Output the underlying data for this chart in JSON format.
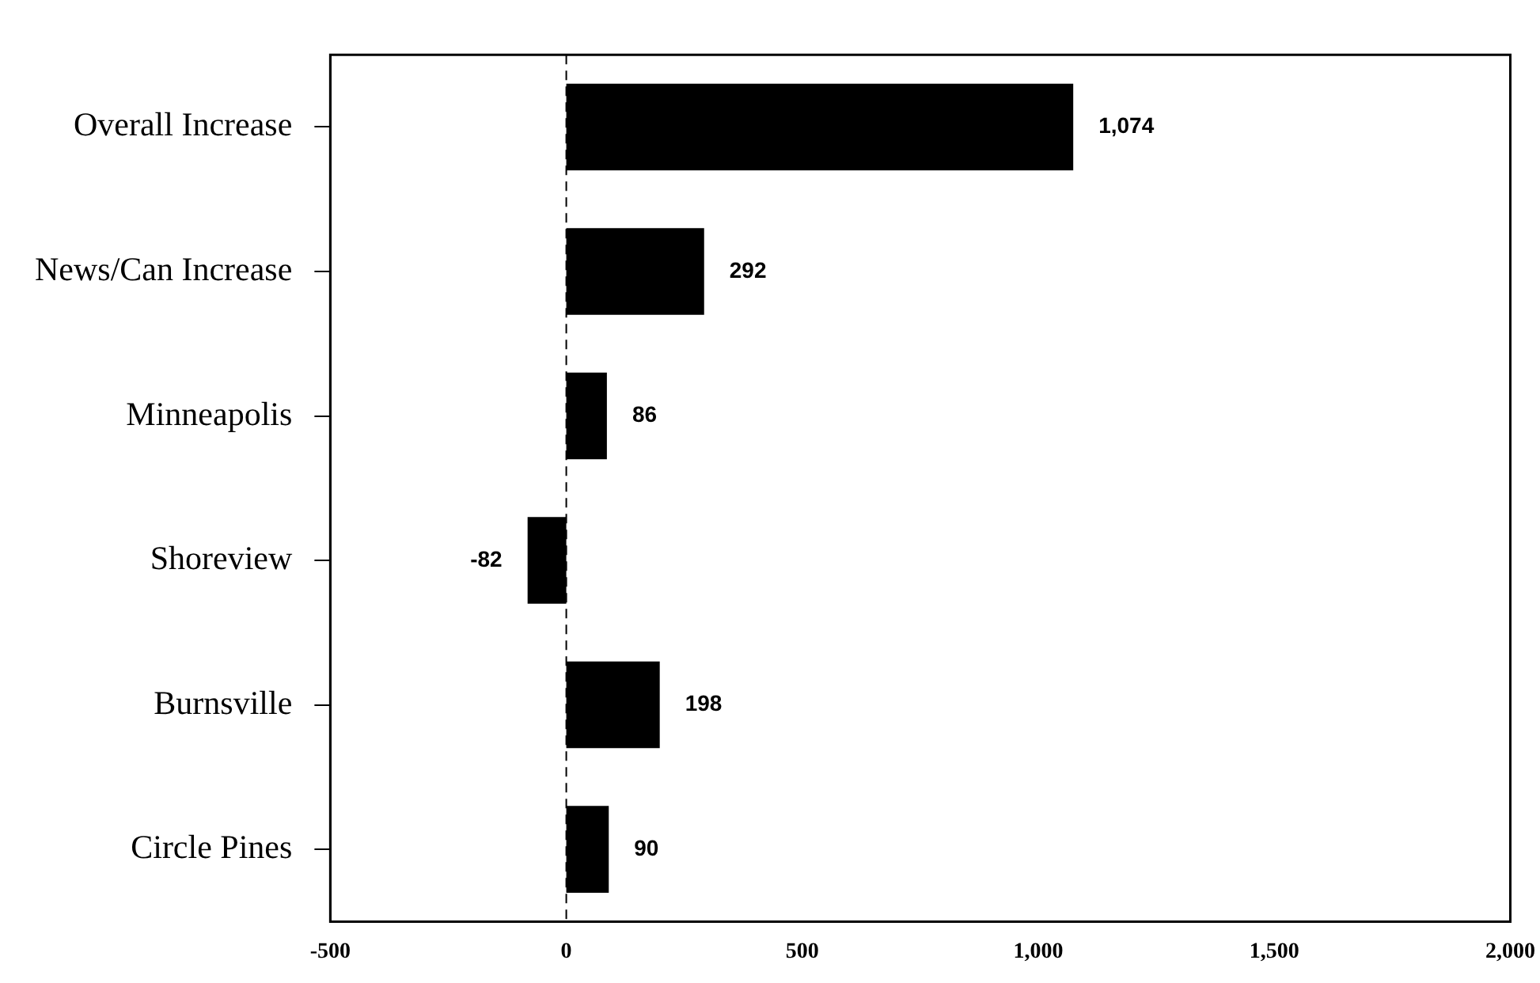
{
  "chart_data": {
    "type": "bar",
    "orientation": "horizontal",
    "categories": [
      "Overall Increase",
      "News/Can Increase",
      "Minneapolis",
      "Shoreview",
      "Burnsville",
      "Circle Pines"
    ],
    "values": [
      1074,
      292,
      86,
      -82,
      198,
      90
    ],
    "value_labels": [
      "1,074",
      "292",
      "86",
      "-82",
      "198",
      "90"
    ],
    "color": "#000000",
    "xlim": [
      -500,
      2000
    ],
    "xticks": [
      -500,
      0,
      500,
      {
        "value": 1000,
        "label": "1,000"
      },
      {
        "value": 1500,
        "label": "1,500"
      },
      {
        "value": 2000,
        "label": "2,000"
      }
    ],
    "ref_lines": [
      {
        "axis": "x",
        "value": 0,
        "line_style": "dashed",
        "color": "#000000"
      }
    ],
    "grid": false,
    "legend": false
  }
}
